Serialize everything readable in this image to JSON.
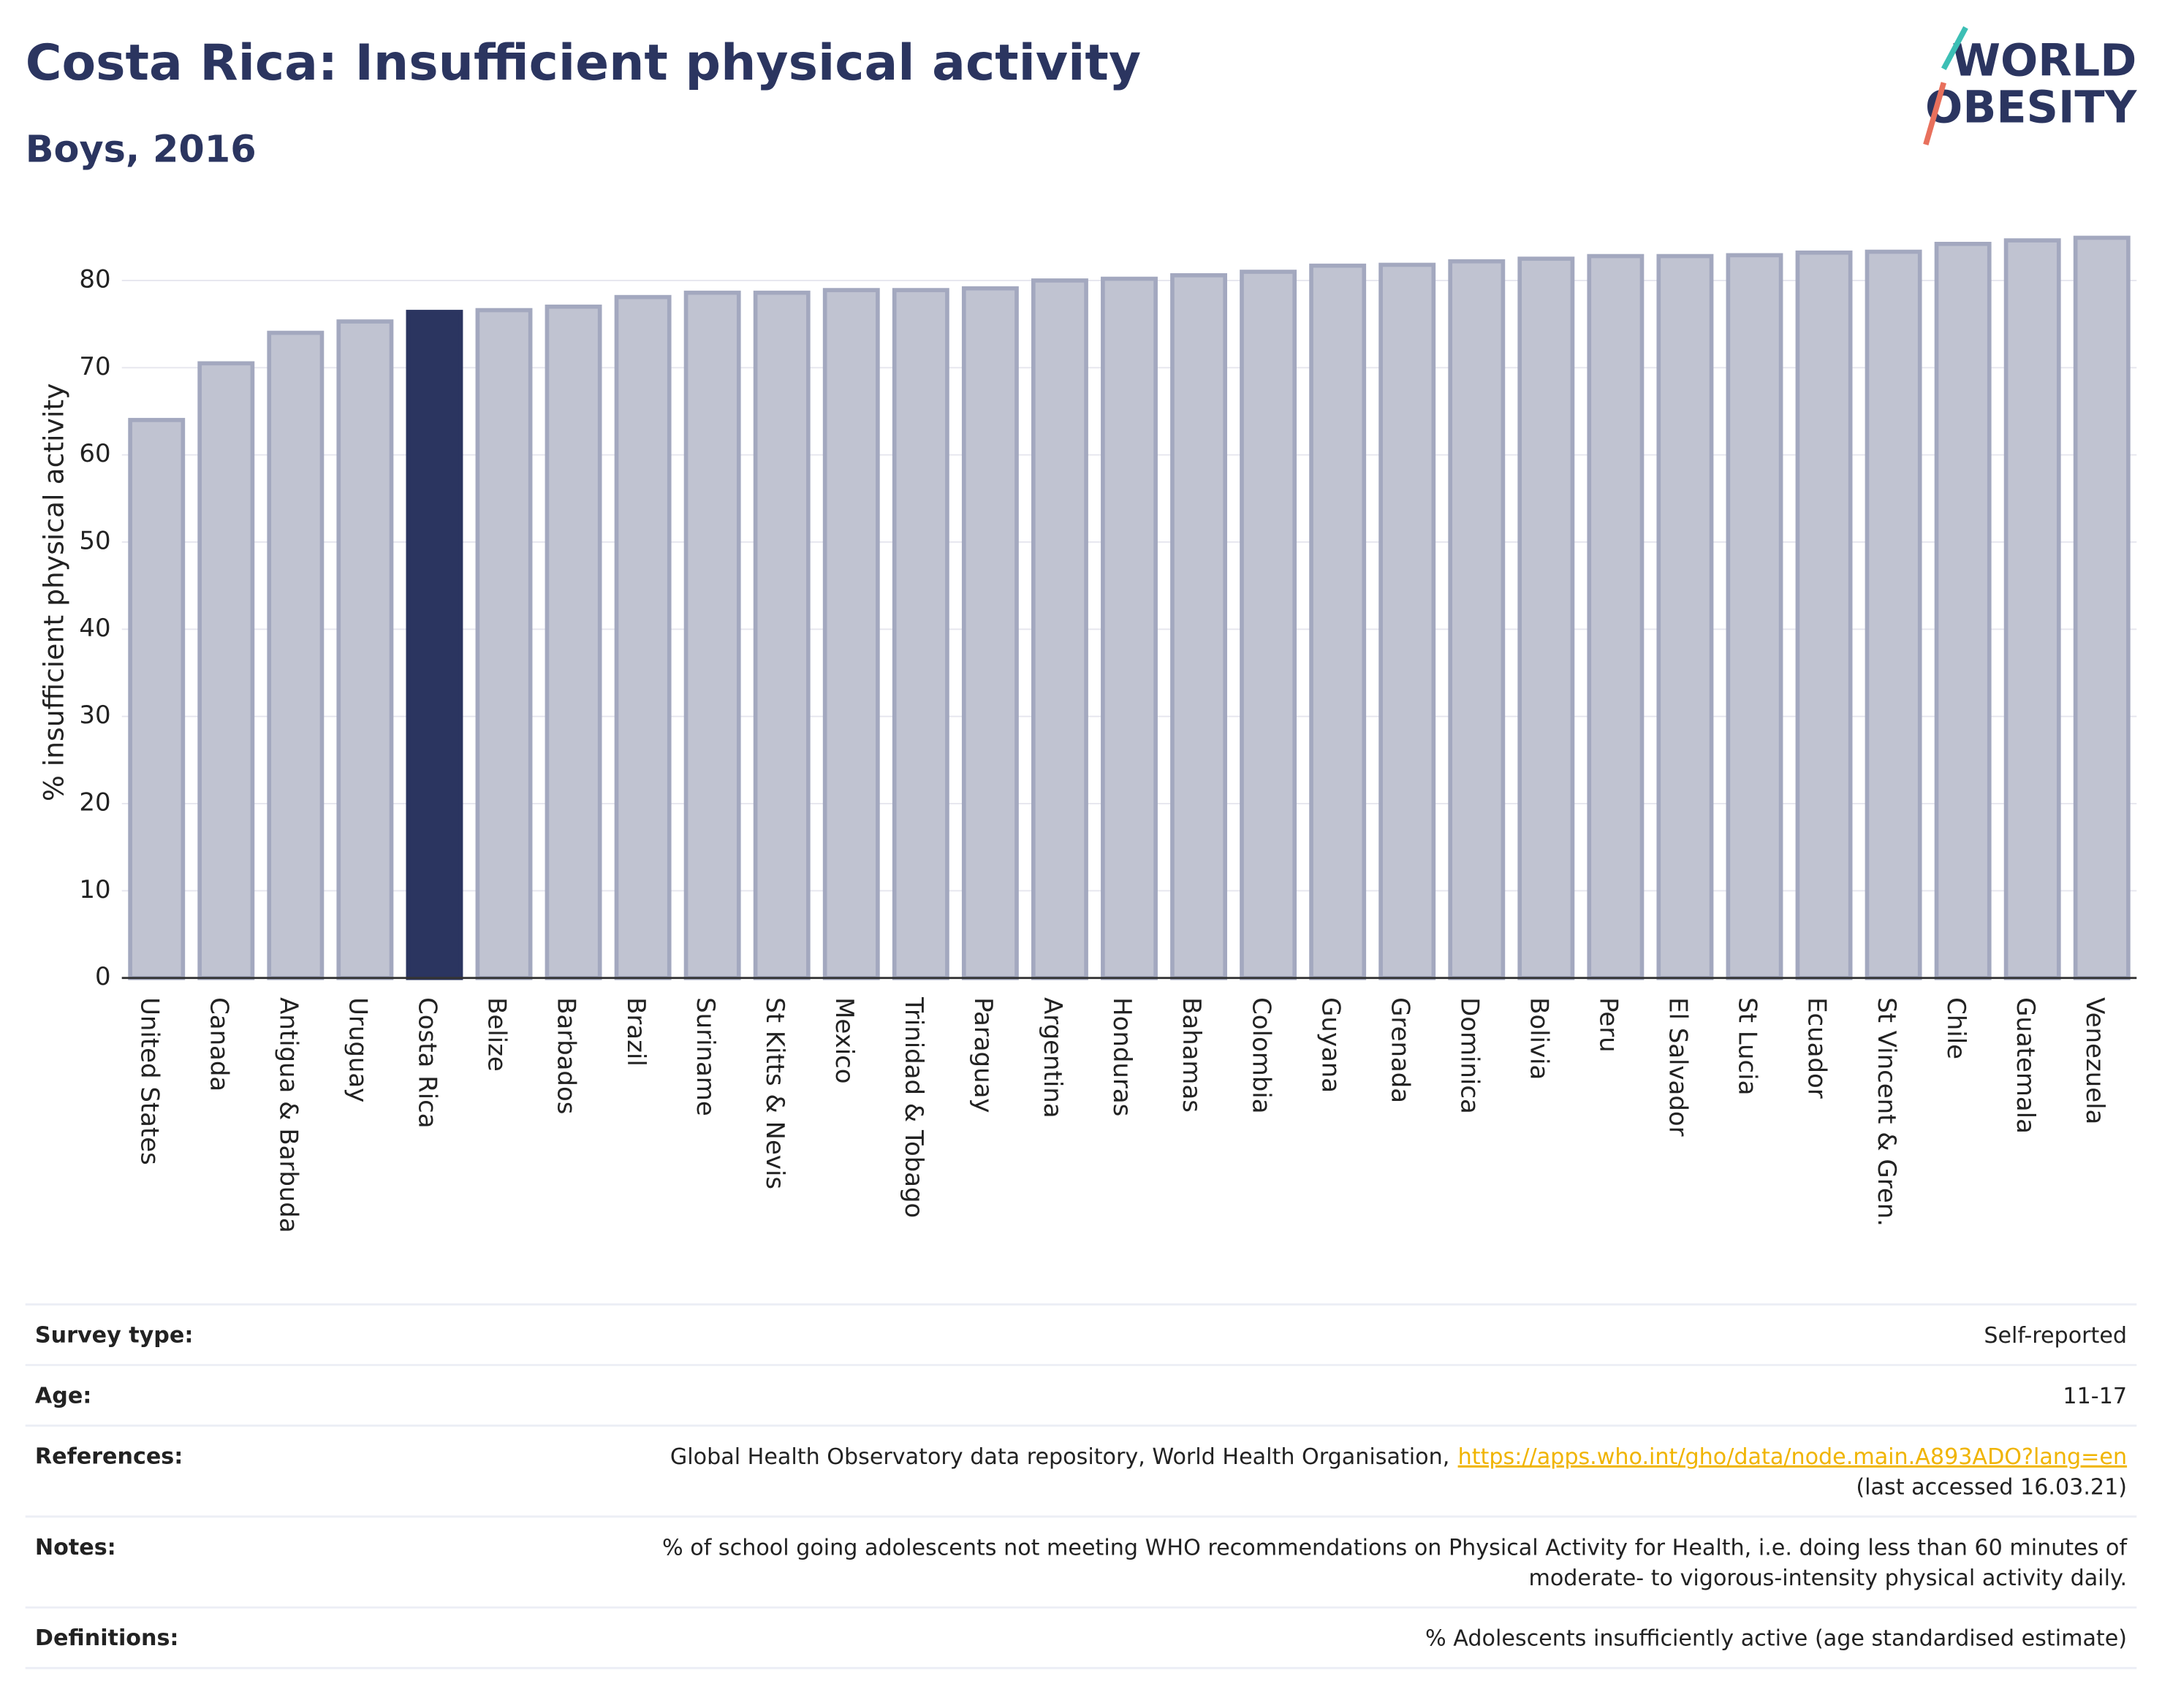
{
  "chart_data": {
    "type": "bar",
    "title": "Costa Rica: Insufficient physical activity",
    "subtitle": "Boys, 2016",
    "y_label": "% insufficient physical activity",
    "logo": [
      "WORLD",
      "OBESITY"
    ],
    "categories": [
      "United States",
      "Canada",
      "Antigua & Barbuda",
      "Uruguay",
      "Costa Rica",
      "Belize",
      "Barbados",
      "Brazil",
      "Suriname",
      "St Kitts & Nevis",
      "Mexico",
      "Trinidad & Tobago",
      "Paraguay",
      "Argentina",
      "Honduras",
      "Bahamas",
      "Colombia",
      "Guyana",
      "Grenada",
      "Dominica",
      "Bolivia",
      "Peru",
      "El Salvador",
      "St Lucia",
      "Ecuador",
      "St Vincent & Gren.",
      "Chile",
      "Guatemala",
      "Venezuela"
    ],
    "values": [
      64.0,
      70.5,
      74.0,
      75.3,
      76.4,
      76.6,
      77.0,
      78.1,
      78.6,
      78.6,
      78.9,
      78.9,
      79.1,
      80.0,
      80.2,
      80.6,
      81.0,
      81.7,
      81.8,
      82.2,
      82.5,
      82.8,
      82.8,
      82.9,
      83.2,
      83.3,
      84.2,
      84.6,
      84.9
    ],
    "colors": [
      "#c0c3d1",
      "#c0c3d1",
      "#c0c3d1",
      "#c0c3d1",
      "#2b3560",
      "#c0c3d1",
      "#c0c3d1",
      "#c0c3d1",
      "#c0c3d1",
      "#c0c3d1",
      "#c0c3d1",
      "#c0c3d1",
      "#c0c3d1",
      "#c0c3d1",
      "#c0c3d1",
      "#c0c3d1",
      "#c0c3d1",
      "#c0c3d1",
      "#c0c3d1",
      "#c0c3d1",
      "#c0c3d1",
      "#c0c3d1",
      "#c0c3d1",
      "#c0c3d1",
      "#c0c3d1",
      "#c0c3d1",
      "#c0c3d1",
      "#c0c3d1",
      "#c0c3d1"
    ],
    "ylim": [
      0,
      88
    ],
    "yticks": [
      0,
      10,
      20,
      30,
      40,
      50,
      60,
      70,
      80
    ],
    "grid": true
  },
  "details": [
    {
      "label": "Survey type:",
      "lines": [
        "Self-reported"
      ]
    },
    {
      "label": "Age:",
      "lines": [
        "11-17"
      ]
    },
    {
      "label": "References:",
      "lines": [
        "Global Health Observatory data repository, World Health Organisation,",
        "(last accessed 16.03.21)"
      ],
      "link": "https://apps.who.int/gho/data/node.main.A893ADO?lang=en"
    },
    {
      "label": "Notes:",
      "lines": [
        "% of school going adolescents not meeting WHO recommendations on Physical Activity for Health, i.e. doing less than 60 minutes of",
        "moderate- to vigorous-intensity physical activity daily."
      ]
    },
    {
      "label": "Definitions:",
      "lines": [
        "% Adolescents insufficiently active (age standardised estimate)"
      ]
    }
  ]
}
